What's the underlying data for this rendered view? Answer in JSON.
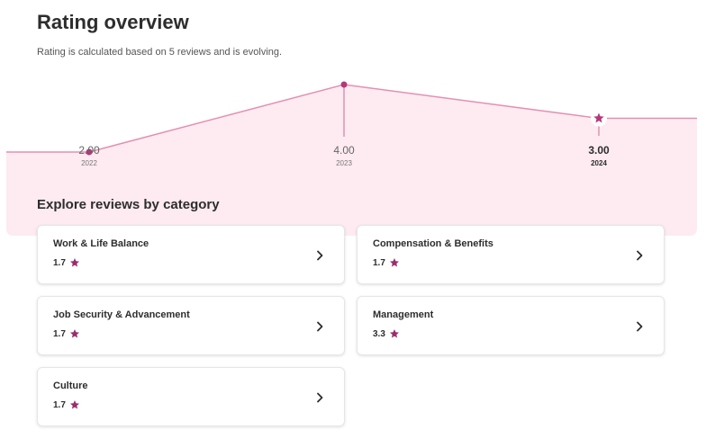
{
  "header": {
    "title": "Rating overview",
    "subtitle": "Rating is calculated based on 5 reviews and is evolving."
  },
  "colors": {
    "accent": "#b5377b",
    "line": "#e58fb1",
    "band": "#fdebf1",
    "star": "#9b2c6d"
  },
  "chart_data": {
    "type": "line",
    "x": [
      "2022",
      "2023",
      "2024"
    ],
    "values": [
      2.0,
      4.0,
      3.0
    ],
    "value_labels": [
      "2.00",
      "4.00",
      "3.00"
    ],
    "ylim": [
      0,
      5
    ],
    "current_index": 2,
    "markers": [
      "dot",
      "dot",
      "star"
    ]
  },
  "categories_section": {
    "heading": "Explore reviews by category",
    "items": [
      {
        "label": "Work & Life Balance",
        "rating": "1.7",
        "icon": "star-icon"
      },
      {
        "label": "Compensation & Benefits",
        "rating": "1.7",
        "icon": "star-icon"
      },
      {
        "label": "Job Security & Advancement",
        "rating": "1.7",
        "icon": "star-icon"
      },
      {
        "label": "Management",
        "rating": "3.3",
        "icon": "star-icon"
      },
      {
        "label": "Culture",
        "rating": "1.7",
        "icon": "star-icon"
      }
    ]
  }
}
